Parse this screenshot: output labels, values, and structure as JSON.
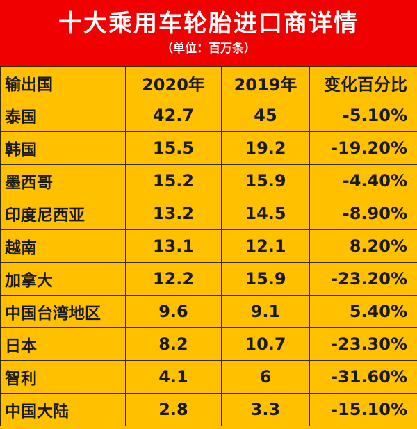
{
  "header": {
    "title": "十大乘用车轮胎进口商详情",
    "subtitle": "（单位：百万条）"
  },
  "table": {
    "columns": [
      "输出国",
      "2020年",
      "2019年",
      "变化百分比"
    ],
    "rows": [
      [
        "泰国",
        "42.7",
        "45",
        "-5.10%"
      ],
      [
        "韩国",
        "15.5",
        "19.2",
        "-19.20%"
      ],
      [
        "墨西哥",
        "15.2",
        "15.9",
        "-4.40%"
      ],
      [
        "印度尼西亚",
        "13.2",
        "14.5",
        "-8.90%"
      ],
      [
        "越南",
        "13.1",
        "12.1",
        "8.20%"
      ],
      [
        "加拿大",
        "12.2",
        "15.9",
        "-23.20%"
      ],
      [
        "中国台湾地区",
        "9.6",
        "9.1",
        "5.40%"
      ],
      [
        "日本",
        "8.2",
        "10.7",
        "-23.30%"
      ],
      [
        "智利",
        "4.1",
        "6",
        "-31.60%"
      ],
      [
        "中国大陆",
        "2.8",
        "3.3",
        "-15.10%"
      ]
    ]
  }
}
